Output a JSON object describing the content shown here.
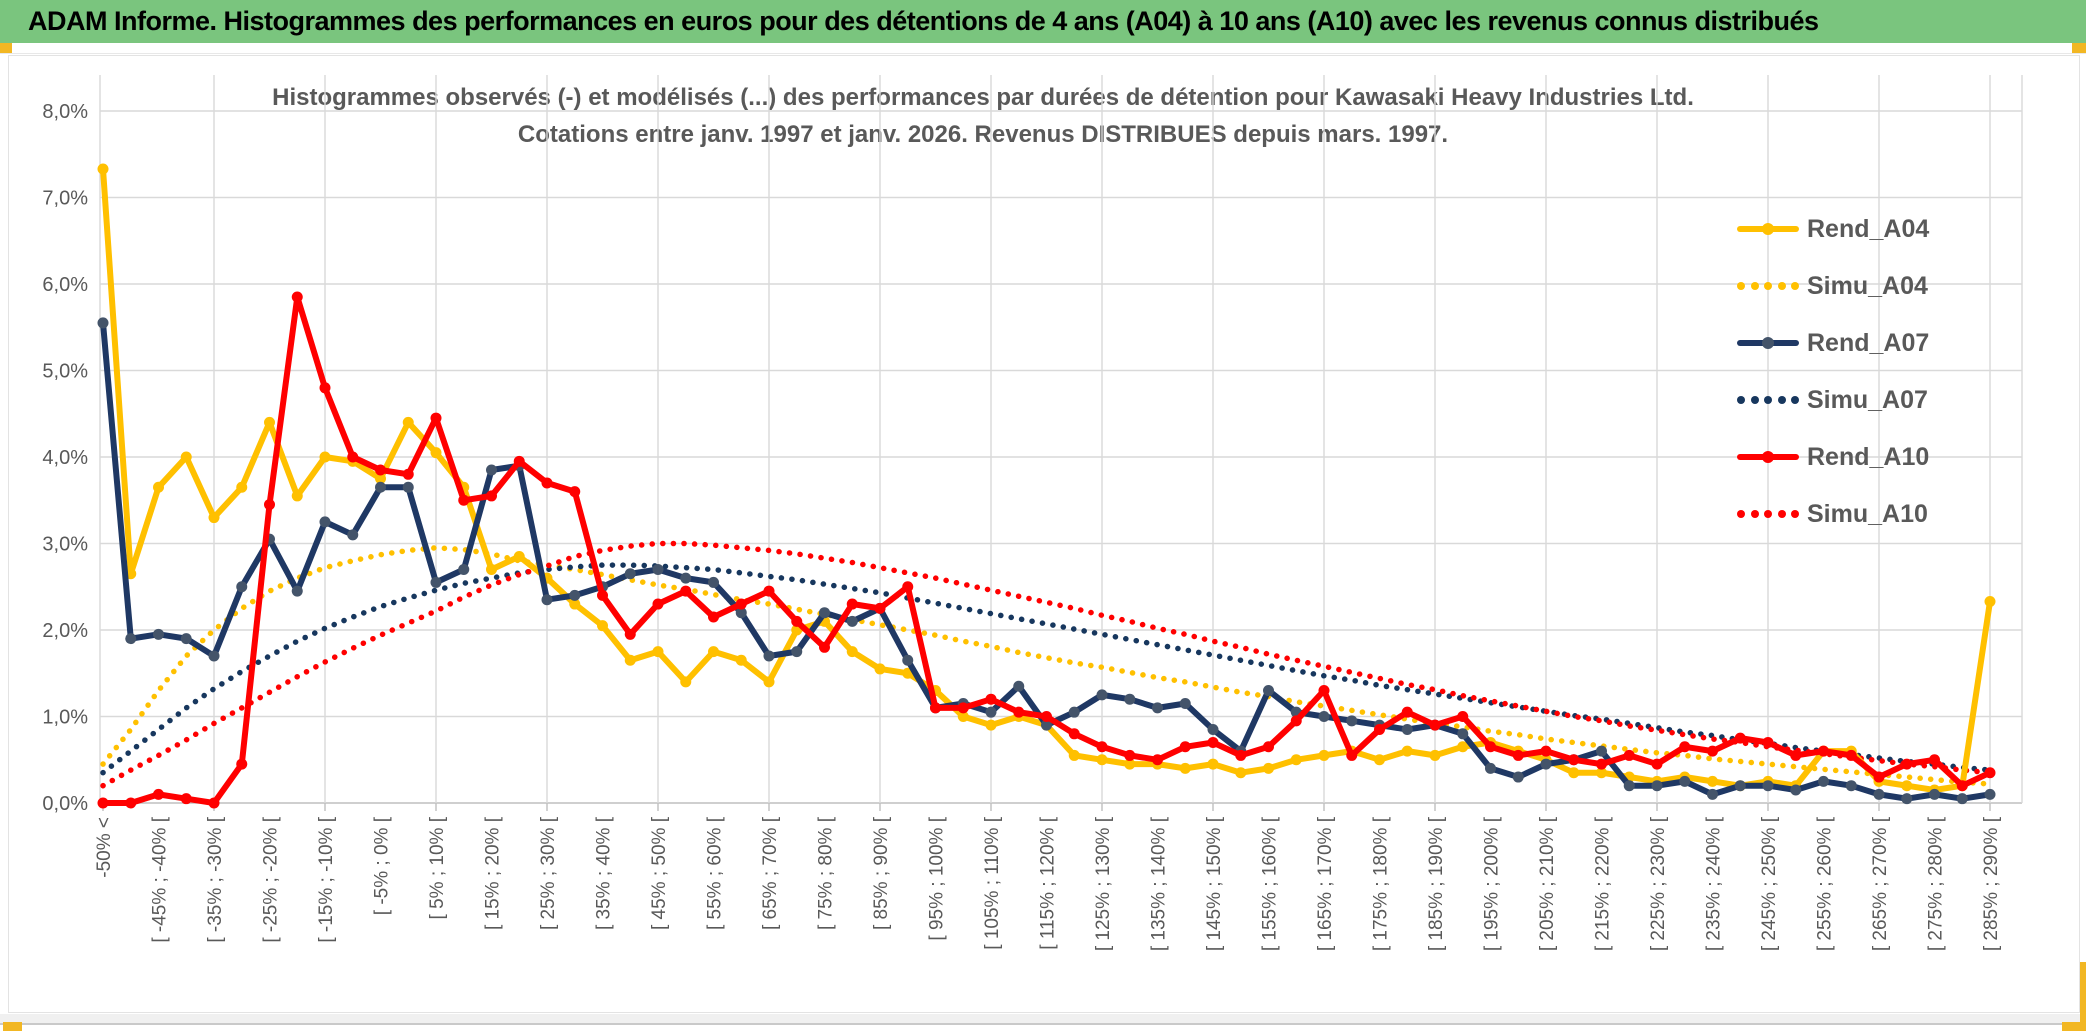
{
  "window": {
    "title": "ADAM Informe. Histogrammes des performances en euros pour des détentions de 4 ans (A04) à 10 ans (A10) avec les revenus connus distribués",
    "titlebar_color": "#7AC57E",
    "accent_color": "#F2B723"
  },
  "chart_data": {
    "type": "line",
    "title_line1": "Histogrammes observés (-) et modélisés (...) des performances par durées de détention pour Kawasaki Heavy Industries Ltd.",
    "title_line2": "Cotations entre janv. 1997 et janv. 2026. Revenus DISTRIBUES depuis mars. 1997.",
    "grid": true,
    "legend_position": "right-upper",
    "ylim": [
      0,
      8
    ],
    "y_ticks": [
      "0,0%",
      "1,0%",
      "2,0%",
      "3,0%",
      "4,0%",
      "5,0%",
      "6,0%",
      "7,0%",
      "8,0%"
    ],
    "x_label_every": 2,
    "x_tick_labels": [
      "-50% <",
      "[ -45% ; -40% [",
      "[ -35% ; -30% [",
      "[ -25% ; -20% [",
      "[ -15% ; -10% [",
      "[ -5% ; 0% [",
      "[ 5% ; 10% [",
      "[ 15% ; 20% [",
      "[ 25% ; 30% [",
      "[ 35% ; 40% [",
      "[ 45% ; 50% [",
      "[ 55% ; 60% [",
      "[ 65% ; 70% [",
      "[ 75% ; 80% [",
      "[ 85% ; 90% [",
      "[ 95% ; 100% [",
      "[ 105% ; 110% [",
      "[ 115% ; 120% [",
      "[ 125% ; 130% [",
      "[ 135% ; 140% [",
      "[ 145% ; 150% [",
      "[ 155% ; 160% [",
      "[ 165% ; 170% [",
      "[ 175% ; 180% [",
      "[ 185% ; 190% [",
      "[ 195% ; 200% [",
      "[ 205% ; 210% [",
      "[ 215% ; 220% [",
      "[ 225% ; 230% [",
      "[ 235% ; 240% [",
      "[ 245% ; 250% [",
      "[ 255% ; 260% [",
      "[ 265% ; 270% [",
      "[ 275% ; 280% [",
      "[ 285% ; 290% ["
    ],
    "series": [
      {
        "name": "Rend_A04",
        "color": "#FFC000",
        "marker_color": "#FFC000",
        "style": "solid",
        "values": [
          7.33,
          2.65,
          3.65,
          4.0,
          3.3,
          3.65,
          4.4,
          3.55,
          4.0,
          3.95,
          3.75,
          4.4,
          4.05,
          3.65,
          2.7,
          2.85,
          2.6,
          2.3,
          2.05,
          1.65,
          1.75,
          1.4,
          1.75,
          1.65,
          1.4,
          2.0,
          2.1,
          1.75,
          1.55,
          1.5,
          1.3,
          1.0,
          0.9,
          1.0,
          0.9,
          0.55,
          0.5,
          0.45,
          0.45,
          0.4,
          0.45,
          0.35,
          0.4,
          0.5,
          0.55,
          0.6,
          0.5,
          0.6,
          0.55,
          0.65,
          0.7,
          0.6,
          0.5,
          0.35,
          0.35,
          0.3,
          0.25,
          0.3,
          0.25,
          0.2,
          0.25,
          0.2,
          0.6,
          0.6,
          0.25,
          0.2,
          0.15,
          0.2,
          2.33
        ]
      },
      {
        "name": "Simu_A04",
        "color": "#FFC000",
        "style": "dotted",
        "values": [
          0.45,
          0.85,
          1.3,
          1.7,
          2.0,
          2.25,
          2.45,
          2.6,
          2.72,
          2.8,
          2.87,
          2.92,
          2.95,
          2.93,
          2.88,
          2.8,
          2.75,
          2.7,
          2.64,
          2.58,
          2.52,
          2.47,
          2.41,
          2.35,
          2.3,
          2.24,
          2.18,
          2.12,
          2.06,
          2.0,
          1.94,
          1.87,
          1.81,
          1.74,
          1.68,
          1.62,
          1.57,
          1.51,
          1.45,
          1.4,
          1.34,
          1.28,
          1.23,
          1.17,
          1.12,
          1.07,
          1.02,
          0.97,
          0.92,
          0.88,
          0.83,
          0.79,
          0.74,
          0.7,
          0.66,
          0.62,
          0.58,
          0.55,
          0.51,
          0.48,
          0.45,
          0.42,
          0.39,
          0.36,
          0.33,
          0.3,
          0.27,
          0.24,
          0.22
        ]
      },
      {
        "name": "Rend_A07",
        "color": "#1F3864",
        "marker_color": "#44546A",
        "style": "solid",
        "values": [
          5.55,
          1.9,
          1.95,
          1.9,
          1.7,
          2.5,
          3.05,
          2.45,
          3.25,
          3.1,
          3.65,
          3.65,
          2.55,
          2.7,
          3.85,
          3.9,
          2.35,
          2.4,
          2.5,
          2.65,
          2.7,
          2.6,
          2.55,
          2.2,
          1.7,
          1.75,
          2.2,
          2.1,
          2.25,
          1.65,
          1.1,
          1.15,
          1.05,
          1.35,
          0.9,
          1.05,
          1.25,
          1.2,
          1.1,
          1.15,
          0.85,
          0.6,
          1.3,
          1.05,
          1.0,
          0.95,
          0.9,
          0.85,
          0.9,
          0.8,
          0.4,
          0.3,
          0.45,
          0.5,
          0.6,
          0.2,
          0.2,
          0.25,
          0.1,
          0.2,
          0.2,
          0.15,
          0.25,
          0.2,
          0.1,
          0.05,
          0.1,
          0.05,
          0.1
        ]
      },
      {
        "name": "Simu_A07",
        "color": "#17375E",
        "style": "dotted",
        "values": [
          0.35,
          0.6,
          0.85,
          1.1,
          1.32,
          1.52,
          1.7,
          1.87,
          2.02,
          2.15,
          2.27,
          2.37,
          2.46,
          2.54,
          2.6,
          2.66,
          2.7,
          2.73,
          2.75,
          2.75,
          2.74,
          2.72,
          2.7,
          2.66,
          2.62,
          2.58,
          2.53,
          2.48,
          2.43,
          2.37,
          2.31,
          2.25,
          2.19,
          2.13,
          2.07,
          2.01,
          1.95,
          1.89,
          1.83,
          1.77,
          1.71,
          1.65,
          1.59,
          1.53,
          1.47,
          1.42,
          1.36,
          1.31,
          1.26,
          1.21,
          1.16,
          1.11,
          1.06,
          1.01,
          0.97,
          0.92,
          0.87,
          0.82,
          0.78,
          0.73,
          0.69,
          0.64,
          0.6,
          0.56,
          0.52,
          0.48,
          0.45,
          0.41,
          0.38
        ]
      },
      {
        "name": "Rend_A10",
        "color": "#FF0000",
        "marker_color": "#FF0000",
        "style": "solid",
        "values": [
          0.0,
          0.0,
          0.1,
          0.05,
          0.0,
          0.45,
          3.45,
          5.85,
          4.8,
          4.0,
          3.85,
          3.8,
          4.45,
          3.5,
          3.55,
          3.95,
          3.7,
          3.6,
          2.4,
          1.95,
          2.3,
          2.45,
          2.15,
          2.3,
          2.45,
          2.1,
          1.8,
          2.3,
          2.25,
          2.5,
          1.1,
          1.1,
          1.2,
          1.05,
          1.0,
          0.8,
          0.65,
          0.55,
          0.5,
          0.65,
          0.7,
          0.55,
          0.65,
          0.95,
          1.3,
          0.55,
          0.85,
          1.05,
          0.9,
          1.0,
          0.65,
          0.55,
          0.6,
          0.5,
          0.45,
          0.55,
          0.45,
          0.65,
          0.6,
          0.75,
          0.7,
          0.55,
          0.6,
          0.55,
          0.3,
          0.45,
          0.5,
          0.2,
          0.35
        ]
      },
      {
        "name": "Simu_A10",
        "color": "#FF0000",
        "style": "dotted",
        "values": [
          0.2,
          0.38,
          0.55,
          0.73,
          0.92,
          1.1,
          1.28,
          1.46,
          1.63,
          1.79,
          1.94,
          2.08,
          2.22,
          2.38,
          2.52,
          2.64,
          2.74,
          2.85,
          2.92,
          2.97,
          3.0,
          3.0,
          2.98,
          2.95,
          2.92,
          2.88,
          2.83,
          2.78,
          2.72,
          2.66,
          2.6,
          2.53,
          2.46,
          2.39,
          2.32,
          2.25,
          2.17,
          2.1,
          2.02,
          1.95,
          1.87,
          1.8,
          1.72,
          1.65,
          1.58,
          1.51,
          1.44,
          1.37,
          1.31,
          1.24,
          1.18,
          1.12,
          1.06,
          1.0,
          0.95,
          0.89,
          0.84,
          0.79,
          0.74,
          0.7,
          0.65,
          0.61,
          0.57,
          0.53,
          0.49,
          0.45,
          0.42,
          0.38,
          0.35
        ]
      }
    ],
    "colors": {
      "grid": "#D9D9D9",
      "axis": "#BFBFBF",
      "tick_text": "#595959"
    }
  }
}
